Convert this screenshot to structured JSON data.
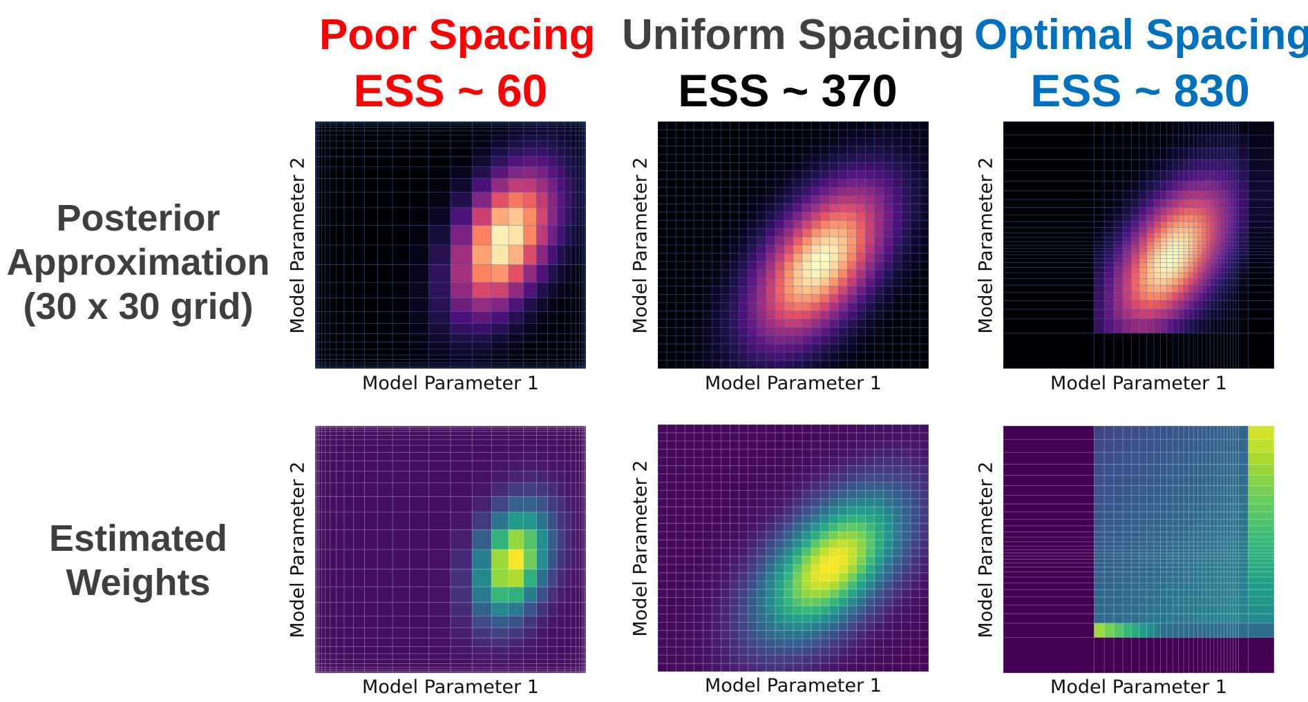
{
  "columns": [
    {
      "title": "Poor Spacing",
      "ess": "ESS ~ 60",
      "color": "#ff0000"
    },
    {
      "title": "Uniform Spacing",
      "ess": "ESS ~ 370",
      "ess_color": "#000000",
      "color": "#404040"
    },
    {
      "title": "Optimal Spacing",
      "ess": "ESS ~ 830",
      "color": "#0070c0"
    }
  ],
  "rows": [
    {
      "label_lines": [
        "Posterior",
        "Approximation",
        "(30 x 30 grid)"
      ],
      "colormap": "magma"
    },
    {
      "label_lines": [
        "Estimated",
        "Weights"
      ],
      "colormap": "viridis"
    }
  ],
  "axes": {
    "xlabel": "Model Parameter 1",
    "ylabel": "Model Parameter 2"
  },
  "chart_data": [
    {
      "type": "heatmap",
      "row": "Posterior Approximation (30 x 30 grid)",
      "column": "Poor Spacing",
      "colormap": "magma",
      "grid": "30 x 30 non-uniform",
      "peak": {
        "x": 0.7,
        "y": 0.55
      },
      "xlabel": "Model Parameter 1",
      "ylabel": "Model Parameter 2"
    },
    {
      "type": "heatmap",
      "row": "Posterior Approximation (30 x 30 grid)",
      "column": "Uniform Spacing",
      "colormap": "magma",
      "grid": "30 x 30 uniform",
      "peak": {
        "x": 0.6,
        "y": 0.57
      },
      "xlabel": "Model Parameter 1",
      "ylabel": "Model Parameter 2"
    },
    {
      "type": "heatmap",
      "row": "Posterior Approximation (30 x 30 grid)",
      "column": "Optimal Spacing",
      "colormap": "magma",
      "grid": "30 x 30 adaptive",
      "peak": {
        "x": 0.62,
        "y": 0.55
      },
      "xlabel": "Model Parameter 1",
      "ylabel": "Model Parameter 2"
    },
    {
      "type": "heatmap",
      "row": "Estimated Weights",
      "column": "Poor Spacing",
      "colormap": "viridis",
      "peak": {
        "x": 0.73,
        "y": 0.55
      },
      "xlabel": "Model Parameter 1",
      "ylabel": "Model Parameter 2"
    },
    {
      "type": "heatmap",
      "row": "Estimated Weights",
      "column": "Uniform Spacing",
      "colormap": "viridis",
      "peak": {
        "x": 0.64,
        "y": 0.55
      },
      "xlabel": "Model Parameter 1",
      "ylabel": "Model Parameter 2"
    },
    {
      "type": "heatmap",
      "row": "Estimated Weights",
      "column": "Optimal Spacing",
      "colormap": "viridis",
      "peak": "corners (top-right column, bottom row)",
      "xlabel": "Model Parameter 1",
      "ylabel": "Model Parameter 2"
    }
  ]
}
